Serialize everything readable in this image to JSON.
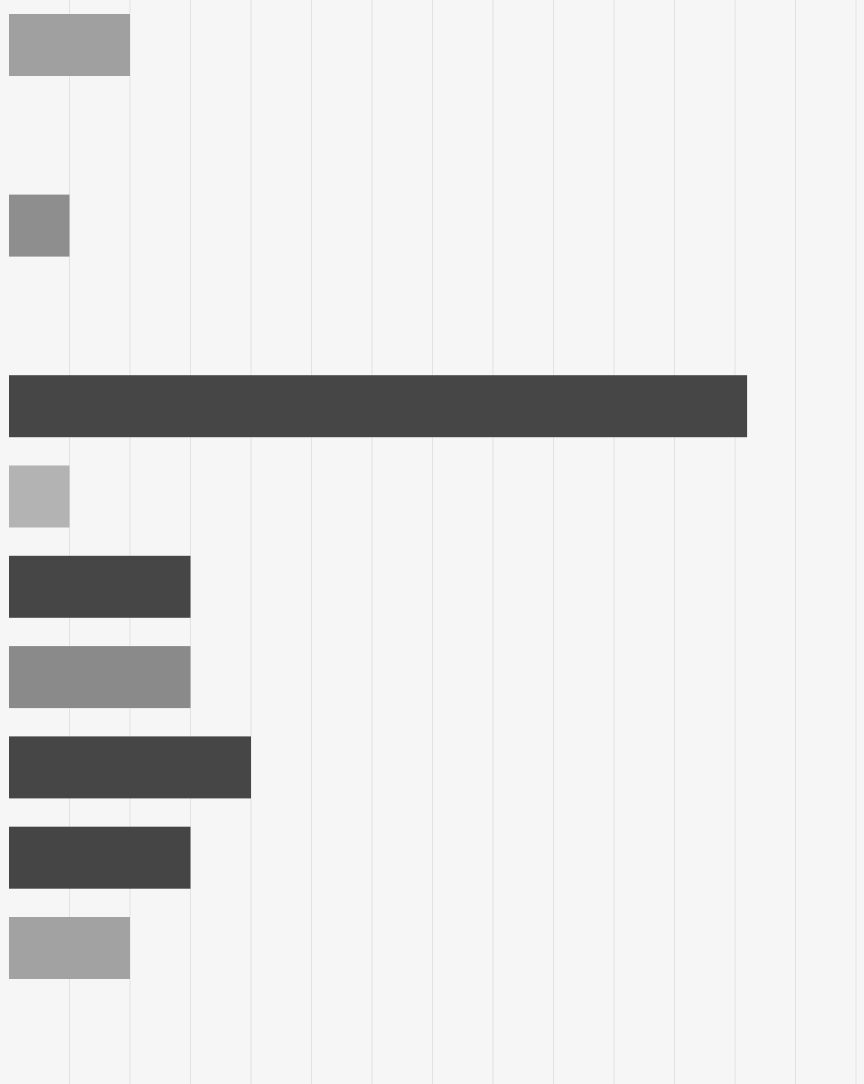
{
  "chart_data": {
    "type": "bar",
    "orientation": "horizontal",
    "title": "",
    "xlabel": "",
    "ylabel": "",
    "grid": true,
    "grid_lines": "vertical",
    "xlim": [
      0,
      14
    ],
    "rows": 12,
    "bars": [
      {
        "row": 0,
        "value": 2.0,
        "color": "#a0a0a0"
      },
      {
        "row": 2,
        "value": 1.0,
        "color": "#8e8e8e"
      },
      {
        "row": 4,
        "value": 12.2,
        "color": "#464646"
      },
      {
        "row": 5,
        "value": 1.0,
        "color": "#b3b3b3"
      },
      {
        "row": 6,
        "value": 3.0,
        "color": "#464646"
      },
      {
        "row": 7,
        "value": 3.0,
        "color": "#8a8a8a"
      },
      {
        "row": 8,
        "value": 4.0,
        "color": "#464646"
      },
      {
        "row": 9,
        "value": 3.0,
        "color": "#454545"
      },
      {
        "row": 10,
        "value": 2.0,
        "color": "#a2a2a2"
      }
    ]
  }
}
